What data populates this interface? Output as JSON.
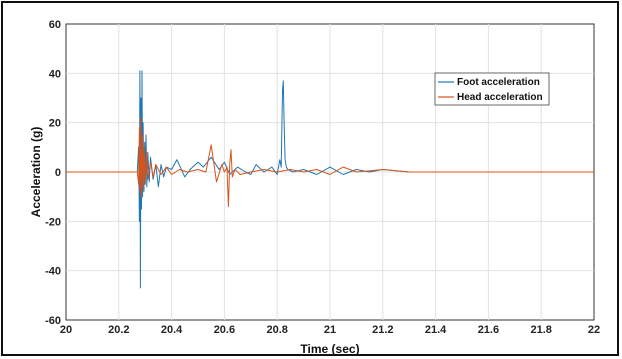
{
  "chart_data": {
    "type": "line",
    "xlabel": "Time (sec)",
    "ylabel": "Acceleration (g)",
    "xlim": [
      20,
      22
    ],
    "ylim": [
      -60,
      60
    ],
    "xticks": [
      "20",
      "20.2",
      "20.4",
      "20.6",
      "20.8",
      "21",
      "21.2",
      "21.4",
      "21.6",
      "21.8",
      "22"
    ],
    "yticks": [
      "60",
      "40",
      "20",
      "0",
      "-20",
      "-40",
      "-60"
    ],
    "grid": true,
    "legend_position": "top-right",
    "series": [
      {
        "name": "Foot acceleration",
        "color": "#1f77b4",
        "x": [
          20.0,
          20.27,
          20.275,
          20.278,
          20.28,
          20.282,
          20.284,
          20.286,
          20.288,
          20.29,
          20.292,
          20.295,
          20.298,
          20.3,
          20.303,
          20.306,
          20.31,
          20.315,
          20.32,
          20.33,
          20.34,
          20.35,
          20.36,
          20.37,
          20.38,
          20.4,
          20.42,
          20.45,
          20.47,
          20.5,
          20.52,
          20.55,
          20.58,
          20.6,
          20.62,
          20.65,
          20.68,
          20.7,
          20.72,
          20.75,
          20.78,
          20.8,
          20.81,
          20.815,
          20.82,
          20.823,
          20.826,
          20.83,
          20.835,
          20.84,
          20.86,
          20.9,
          20.95,
          21.0,
          21.05,
          21.1,
          21.15,
          21.2,
          21.3,
          21.5,
          21.7,
          22.0
        ],
        "values": [
          0,
          0,
          10,
          -20,
          41,
          -47,
          30,
          -15,
          41,
          -10,
          20,
          -8,
          12,
          -5,
          15,
          -6,
          8,
          -4,
          6,
          -3,
          3,
          -6,
          3,
          -2,
          2,
          1,
          5,
          -2,
          1,
          4,
          2,
          6,
          1,
          4,
          -1,
          2,
          0,
          -1,
          3,
          0,
          2,
          -1,
          5,
          2,
          33,
          37,
          20,
          5,
          2,
          1,
          0,
          1,
          -1,
          2,
          -1,
          1,
          0,
          1,
          0,
          0,
          0,
          0
        ]
      },
      {
        "name": "Head acceleration",
        "color": "#d95319",
        "x": [
          20.0,
          20.27,
          20.275,
          20.278,
          20.28,
          20.283,
          20.286,
          20.29,
          20.293,
          20.296,
          20.3,
          20.305,
          20.31,
          20.32,
          20.33,
          20.34,
          20.36,
          20.38,
          20.4,
          20.43,
          20.46,
          20.5,
          20.53,
          20.55,
          20.57,
          20.59,
          20.6,
          20.61,
          20.615,
          20.62,
          20.625,
          20.63,
          20.64,
          20.66,
          20.7,
          20.75,
          20.8,
          20.85,
          20.9,
          20.95,
          21.0,
          21.05,
          21.1,
          21.2,
          21.3,
          21.5,
          22.0
        ],
        "values": [
          0,
          0,
          -5,
          18,
          -8,
          22,
          -10,
          15,
          -7,
          10,
          -5,
          8,
          -3,
          4,
          -2,
          3,
          -1,
          2,
          -1,
          1,
          0,
          1,
          0,
          11,
          -4,
          3,
          0,
          2,
          -14,
          3,
          9,
          -2,
          1,
          -1,
          0,
          1,
          0,
          1,
          0,
          1,
          -1,
          2,
          0,
          1,
          0,
          0,
          0
        ]
      }
    ]
  }
}
